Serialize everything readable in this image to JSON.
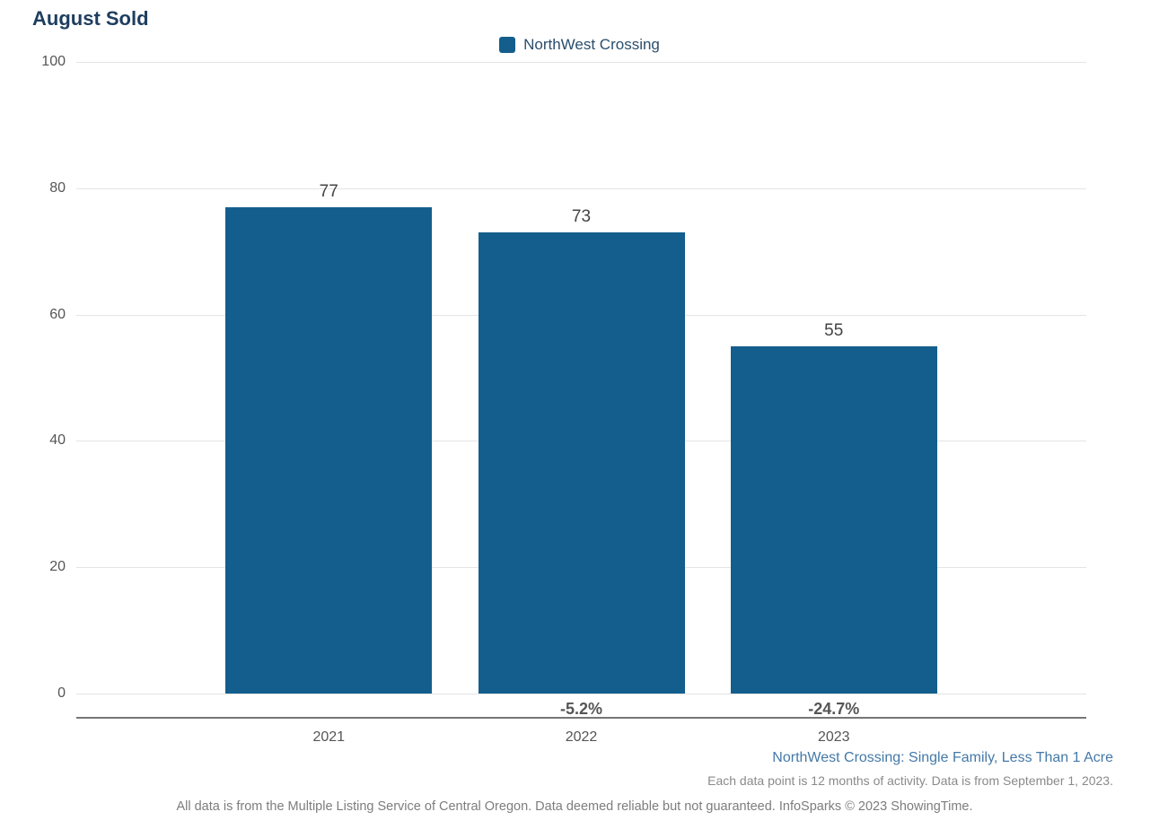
{
  "title": "August Sold",
  "legend": {
    "label": "NorthWest Crossing",
    "swatch_color": "#135e8d"
  },
  "chart_data": {
    "type": "bar",
    "title": "August Sold",
    "categories": [
      "2021",
      "2022",
      "2023"
    ],
    "values": [
      77,
      73,
      55
    ],
    "bar_labels": [
      "77",
      "73",
      "55"
    ],
    "pct_change_labels": [
      "",
      "-5.2%",
      "-24.7%"
    ],
    "series_name": "NorthWest Crossing",
    "xlabel": "",
    "ylabel": "",
    "ylim": [
      0,
      100
    ],
    "yticks": [
      0,
      20,
      40,
      60,
      80,
      100
    ],
    "grid": true,
    "legend_position": "top-center",
    "bar_color": "#135e8d"
  },
  "footer": {
    "segment_label": "NorthWest Crossing: Single Family, Less Than 1 Acre",
    "data_note": "Each data point is 12 months of activity. Data is from September 1, 2023.",
    "disclaimer": "All data is from the Multiple Listing Service of Central Oregon. Data deemed reliable but not guaranteed. InfoSparks © 2023 ShowingTime."
  }
}
